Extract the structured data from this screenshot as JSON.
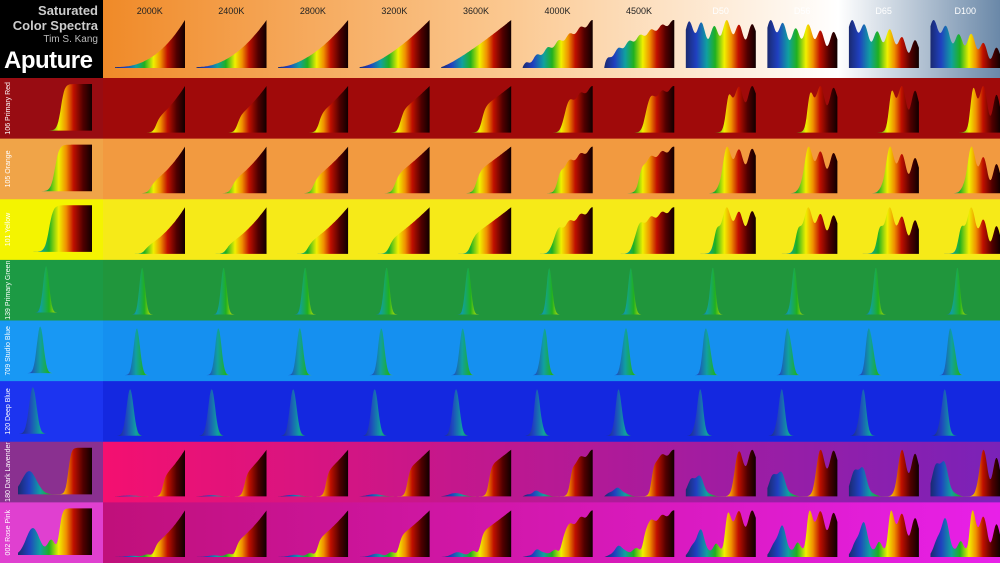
{
  "header": {
    "title": "Saturated Color Spectra",
    "author": "Tim S. Kang",
    "logo": "Aputure"
  },
  "columns": [
    "2000K",
    "2400K",
    "2800K",
    "3200K",
    "3600K",
    "4000K",
    "4500K",
    "D50",
    "D56",
    "D65",
    "D100"
  ],
  "rows": [
    "106 Primary Red",
    "105 Orange",
    "101 Yellow",
    "139 Primary Green",
    "709 Studio Blue",
    "120 Deep Blue",
    "180 Dark Lavender",
    "002 Rose Pink"
  ]
}
